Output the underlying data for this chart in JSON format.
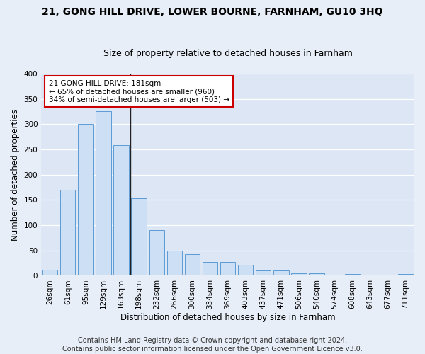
{
  "title1": "21, GONG HILL DRIVE, LOWER BOURNE, FARNHAM, GU10 3HQ",
  "title2": "Size of property relative to detached houses in Farnham",
  "xlabel": "Distribution of detached houses by size in Farnham",
  "ylabel": "Number of detached properties",
  "categories": [
    "26sqm",
    "61sqm",
    "95sqm",
    "129sqm",
    "163sqm",
    "198sqm",
    "232sqm",
    "266sqm",
    "300sqm",
    "334sqm",
    "369sqm",
    "403sqm",
    "437sqm",
    "471sqm",
    "506sqm",
    "540sqm",
    "574sqm",
    "608sqm",
    "643sqm",
    "677sqm",
    "711sqm"
  ],
  "values": [
    12,
    170,
    301,
    326,
    259,
    153,
    91,
    50,
    43,
    27,
    27,
    21,
    10,
    10,
    5,
    5,
    0,
    3,
    0,
    0,
    3
  ],
  "bar_color": "#ccdff5",
  "bar_edge_color": "#5b9bd5",
  "annotation_text": "21 GONG HILL DRIVE: 181sqm\n← 65% of detached houses are smaller (960)\n34% of semi-detached houses are larger (503) →",
  "annotation_box_facecolor": "#ffffff",
  "annotation_box_edgecolor": "#cc0000",
  "ylim": [
    0,
    400
  ],
  "yticks": [
    0,
    50,
    100,
    150,
    200,
    250,
    300,
    350,
    400
  ],
  "footer_line1": "Contains HM Land Registry data © Crown copyright and database right 2024.",
  "footer_line2": "Contains public sector information licensed under the Open Government Licence v3.0.",
  "fig_bg_color": "#e8eef8",
  "plot_bg_color": "#dce6f5",
  "grid_color": "#ffffff",
  "title1_fontsize": 10,
  "title2_fontsize": 9,
  "xlabel_fontsize": 8.5,
  "ylabel_fontsize": 8.5,
  "tick_fontsize": 7.5,
  "annotation_fontsize": 7.5,
  "footer_fontsize": 7
}
